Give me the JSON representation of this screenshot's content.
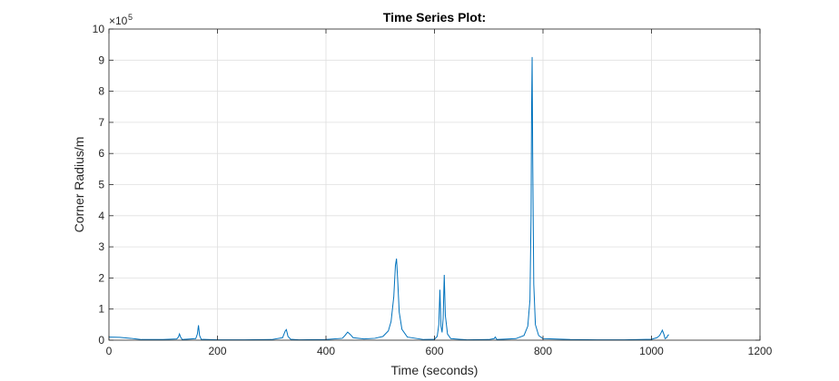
{
  "chart_data": {
    "type": "line",
    "title": "Time Series Plot:",
    "xlabel": "Time (seconds)",
    "ylabel": "Corner Radius/m",
    "xlim": [
      0,
      1200
    ],
    "ylim": [
      0,
      10
    ],
    "y_multiplier_label": "×10",
    "y_multiplier_exponent": "5",
    "x_ticks": [
      0,
      200,
      400,
      600,
      800,
      1000,
      1200
    ],
    "y_ticks": [
      0,
      1,
      2,
      3,
      4,
      5,
      6,
      7,
      8,
      9,
      10
    ],
    "grid": true,
    "line_color": "#0072BD",
    "series": [
      {
        "x": [
          0,
          20,
          40,
          50,
          60,
          100,
          125,
          128,
          130,
          132,
          135,
          160,
          163,
          165,
          167,
          170,
          200,
          250,
          300,
          320,
          325,
          327,
          330,
          335,
          350,
          400,
          430,
          435,
          440,
          445,
          450,
          470,
          490,
          505,
          515,
          520,
          525,
          528,
          530,
          532,
          535,
          540,
          550,
          580,
          600,
          605,
          608,
          610,
          612,
          614,
          616,
          618,
          620,
          624,
          630,
          660,
          700,
          710,
          712,
          715,
          750,
          765,
          772,
          776,
          778,
          779,
          780,
          781,
          783,
          786,
          792,
          800,
          850,
          900,
          950,
          1000,
          1010,
          1015,
          1018,
          1020,
          1023,
          1025,
          1028,
          1030,
          1032
        ],
        "y": [
          0.1,
          0.09,
          0.06,
          0.04,
          0.02,
          0.02,
          0.04,
          0.1,
          0.2,
          0.1,
          0.02,
          0.05,
          0.2,
          0.48,
          0.15,
          0.03,
          0.01,
          0.01,
          0.02,
          0.08,
          0.3,
          0.34,
          0.12,
          0.03,
          0.01,
          0.02,
          0.06,
          0.15,
          0.26,
          0.18,
          0.08,
          0.04,
          0.06,
          0.12,
          0.3,
          0.6,
          1.4,
          2.4,
          2.62,
          2.0,
          0.9,
          0.35,
          0.1,
          0.02,
          0.03,
          0.12,
          0.5,
          1.62,
          0.45,
          0.25,
          0.7,
          2.1,
          0.8,
          0.2,
          0.05,
          0.01,
          0.02,
          0.05,
          0.1,
          0.02,
          0.05,
          0.15,
          0.45,
          1.3,
          4.0,
          7.5,
          9.1,
          6.0,
          1.8,
          0.5,
          0.15,
          0.05,
          0.02,
          0.01,
          0.01,
          0.03,
          0.08,
          0.15,
          0.25,
          0.32,
          0.18,
          0.05,
          0.08,
          0.15,
          0.18
        ]
      }
    ]
  }
}
